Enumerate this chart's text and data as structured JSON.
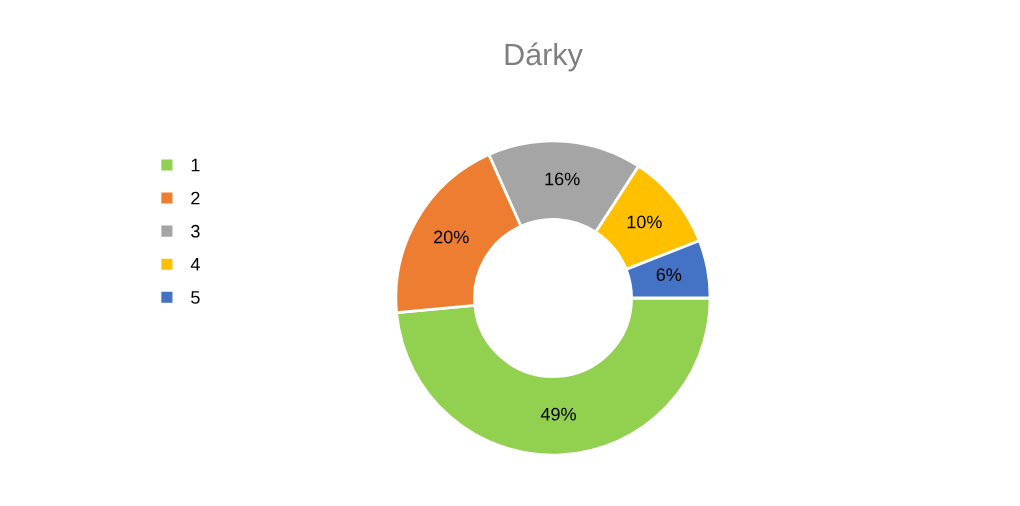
{
  "chart_data": {
    "type": "donut",
    "title": "Dárky",
    "categories": [
      "1",
      "2",
      "3",
      "4",
      "5"
    ],
    "values": [
      49,
      20,
      16,
      10,
      6
    ],
    "colors": [
      "#92d050",
      "#ed7d31",
      "#a5a5a5",
      "#ffc000",
      "#4472c4"
    ],
    "value_labels": [
      "49%",
      "20%",
      "16%",
      "10%",
      "6%"
    ],
    "legend": "left"
  }
}
